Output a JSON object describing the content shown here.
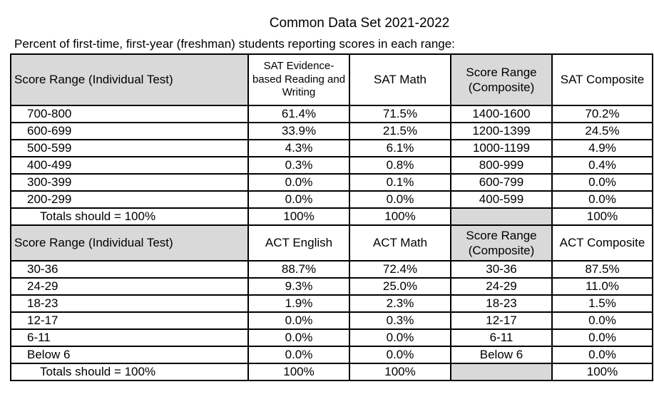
{
  "header": {
    "title": "Common Data Set 2021-2022",
    "subtitle": "Percent of first-time, first-year (freshman) students reporting scores in each range:"
  },
  "table": {
    "sections": [
      {
        "header": [
          "Score Range (Individual Test)",
          "SAT Evidence-based Reading and Writing",
          "SAT Math",
          "Score Range (Composite)",
          "SAT Composite"
        ],
        "rows": [
          [
            "700-800",
            "61.4%",
            "71.5%",
            "1400-1600",
            "70.2%"
          ],
          [
            "600-699",
            "33.9%",
            "21.5%",
            "1200-1399",
            "24.5%"
          ],
          [
            "500-599",
            "4.3%",
            "6.1%",
            "1000-1199",
            "4.9%"
          ],
          [
            "400-499",
            "0.3%",
            "0.8%",
            "800-999",
            "0.4%"
          ],
          [
            "300-399",
            "0.0%",
            "0.1%",
            "600-799",
            "0.0%"
          ],
          [
            "200-299",
            "0.0%",
            "0.0%",
            "400-599",
            "0.0%"
          ],
          [
            "Totals should = 100%",
            "100%",
            "100%",
            null,
            "100%"
          ]
        ]
      },
      {
        "header": [
          "Score Range (Individual Test)",
          "ACT English",
          "ACT Math",
          "Score Range (Composite)",
          "ACT Composite"
        ],
        "rows": [
          [
            "30-36",
            "88.7%",
            "72.4%",
            "30-36",
            "87.5%"
          ],
          [
            "24-29",
            "9.3%",
            "25.0%",
            "24-29",
            "11.0%"
          ],
          [
            "18-23",
            "1.9%",
            "2.3%",
            "18-23",
            "1.5%"
          ],
          [
            "12-17",
            "0.0%",
            "0.3%",
            "12-17",
            "0.0%"
          ],
          [
            "6-11",
            "0.0%",
            "0.0%",
            "6-11",
            "0.0%"
          ],
          [
            "Below 6",
            "0.0%",
            "0.0%",
            "Below 6",
            "0.0%"
          ],
          [
            "Totals should = 100%",
            "100%",
            "100%",
            null,
            "100%"
          ]
        ]
      }
    ]
  }
}
